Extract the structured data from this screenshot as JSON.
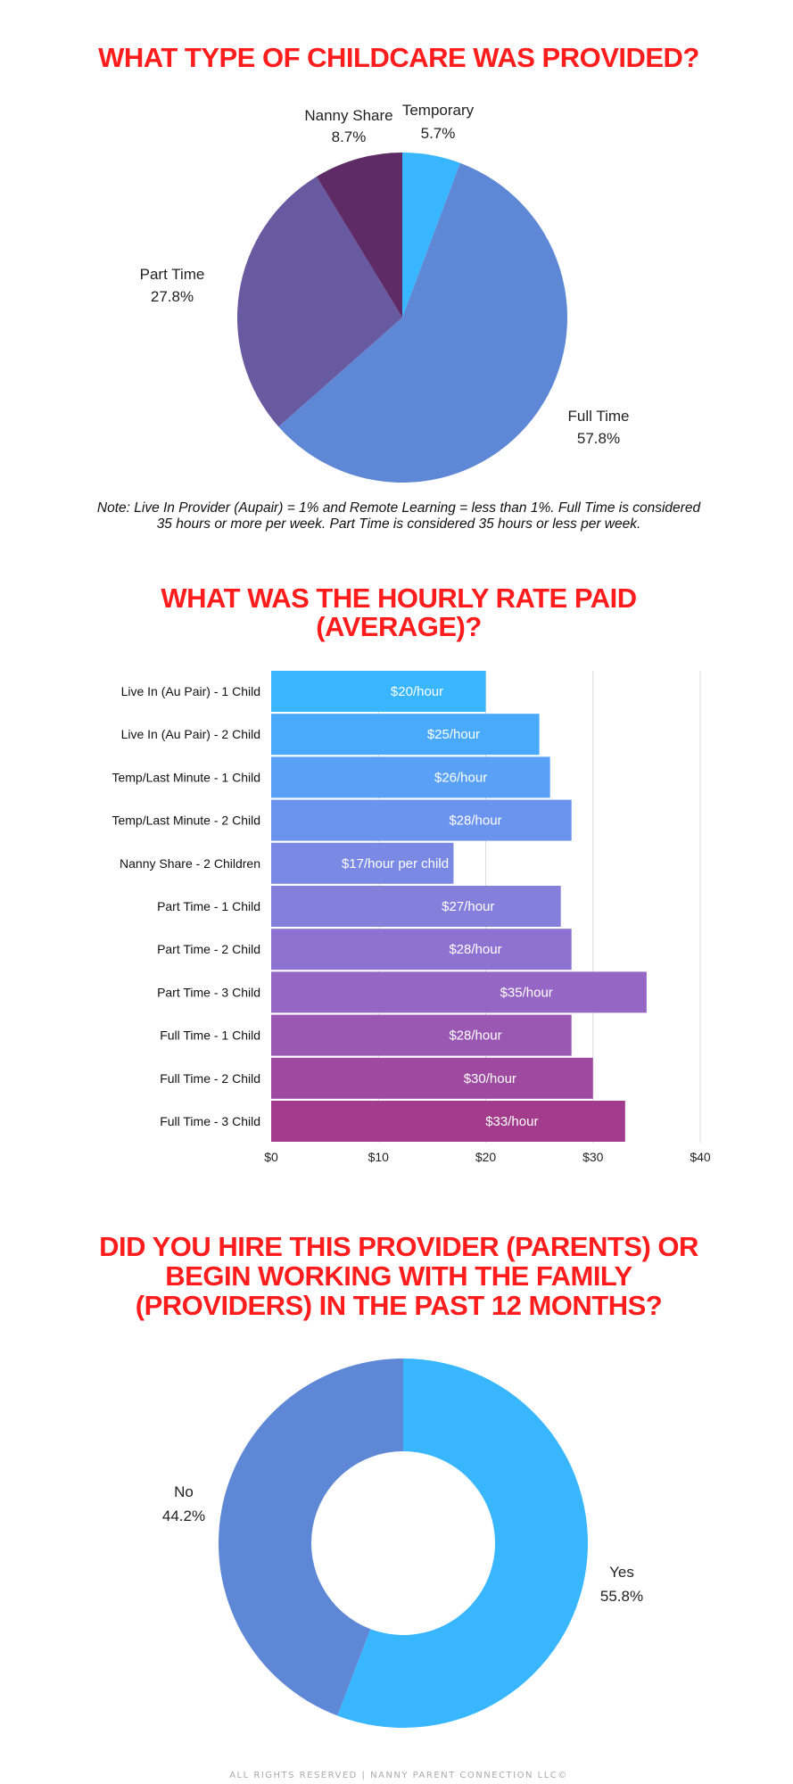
{
  "chart_data": [
    {
      "type": "pie",
      "title": "WHAT TYPE OF CHILDCARE WAS PROVIDED?",
      "categories": [
        "Temporary",
        "Full Time",
        "Part Time",
        "Nanny Share"
      ],
      "values": [
        5.7,
        57.8,
        27.8,
        8.7
      ],
      "value_labels": [
        "5.7%",
        "57.8%",
        "27.8%",
        "8.7%"
      ],
      "colors": [
        "#38b6ff",
        "#5e88d6",
        "#685aa0",
        "#5e2b66"
      ],
      "note": [
        "Note: Live In Provider (Aupair) = 1% and Remote Learning = less than 1%. Full Time is considered",
        "35 hours or more per week. Part Time is considered 35 hours or less per week."
      ]
    },
    {
      "type": "bar",
      "orientation": "horizontal",
      "title": [
        "WHAT WAS THE HOURLY RATE PAID",
        "(AVERAGE)?"
      ],
      "categories": [
        "Live In (Au Pair) - 1 Child",
        "Live In (Au Pair) - 2 Child",
        "Temp/Last Minute - 1 Child",
        "Temp/Last Minute - 2 Child",
        "Nanny Share - 2 Children",
        "Part Time - 1 Child",
        "Part Time - 2 Child",
        "Part Time - 3 Child",
        "Full Time - 1 Child",
        "Full Time - 2 Child",
        "Full Time - 3 Child"
      ],
      "values": [
        20,
        25,
        26,
        28,
        17,
        27,
        28,
        35,
        28,
        30,
        33
      ],
      "data_labels": [
        "$20/hour",
        "$25/hour",
        "$26/hour",
        "$28/hour",
        "$17/hour per child",
        "$27/hour",
        "$28/hour",
        "$35/hour",
        "$28/hour",
        "$30/hour",
        "$33/hour"
      ],
      "colors": [
        "#38b6ff",
        "#49aafc",
        "#58a1f6",
        "#6a94ee",
        "#7a89e4",
        "#857fdc",
        "#8e72d2",
        "#9666c4",
        "#9b58b3",
        "#9f4aa1",
        "#a33b8c"
      ],
      "xlim": [
        0,
        40
      ],
      "xticks": [
        "$0",
        "$10",
        "$20",
        "$30",
        "$40"
      ],
      "grid": true
    },
    {
      "type": "pie",
      "subtype": "donut",
      "title": [
        "DID YOU HIRE THIS PROVIDER (PARENTS) OR",
        "BEGIN WORKING WITH THE FAMILY",
        "(PROVIDERS) IN THE PAST 12 MONTHS?"
      ],
      "categories": [
        "Yes",
        "No"
      ],
      "values": [
        55.8,
        44.2
      ],
      "value_labels": [
        "55.8%",
        "44.2%"
      ],
      "colors": [
        "#38b6ff",
        "#5e88d6"
      ]
    }
  ],
  "footer": "ALL RIGHTS RESERVED | NANNY PARENT CONNECTION LLC©"
}
